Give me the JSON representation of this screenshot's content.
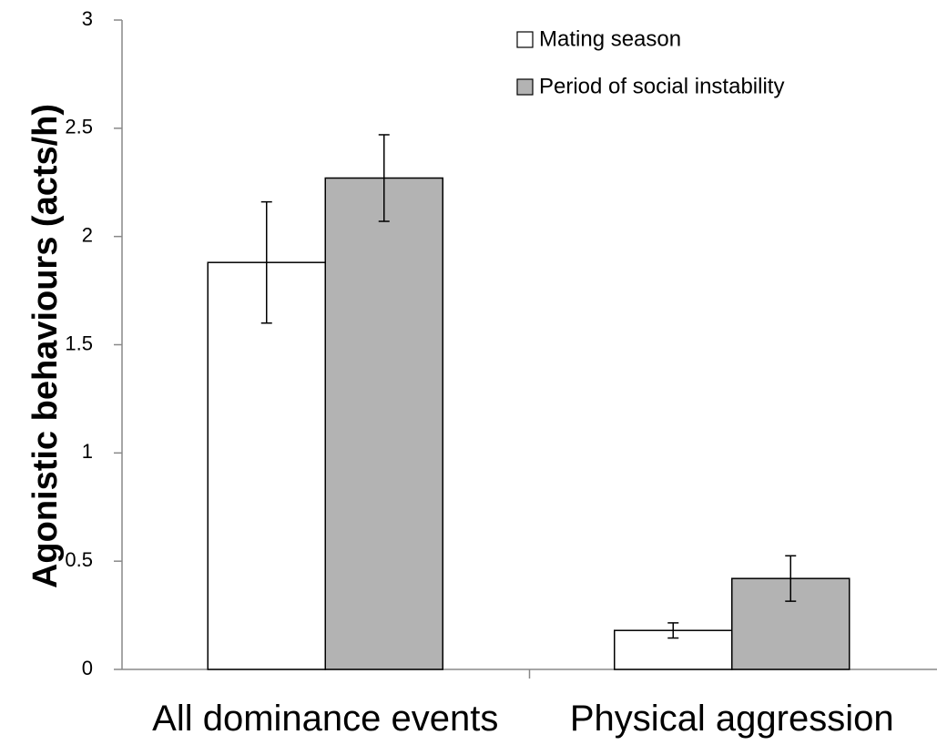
{
  "chart_data": {
    "type": "bar",
    "title": "",
    "xlabel": "",
    "ylabel": "Agonistic behaviours (acts/h)",
    "ylim": [
      0,
      3
    ],
    "yticks": [
      0,
      0.5,
      1,
      1.5,
      2,
      2.5,
      3
    ],
    "ytick_labels": [
      "0",
      "0.5",
      "1",
      "1.5",
      "2",
      "2.5",
      "3"
    ],
    "categories": [
      "All dominance events",
      "Physical aggression"
    ],
    "series": [
      {
        "name": "Mating season",
        "color": "#ffffff",
        "values": [
          1.88,
          0.18
        ],
        "error": [
          0.28,
          0.035
        ]
      },
      {
        "name": "Period of social instability",
        "color": "#b3b3b3",
        "values": [
          2.27,
          0.42
        ],
        "error": [
          0.2,
          0.105
        ]
      }
    ],
    "grid": false,
    "legend_position": "top-right"
  }
}
